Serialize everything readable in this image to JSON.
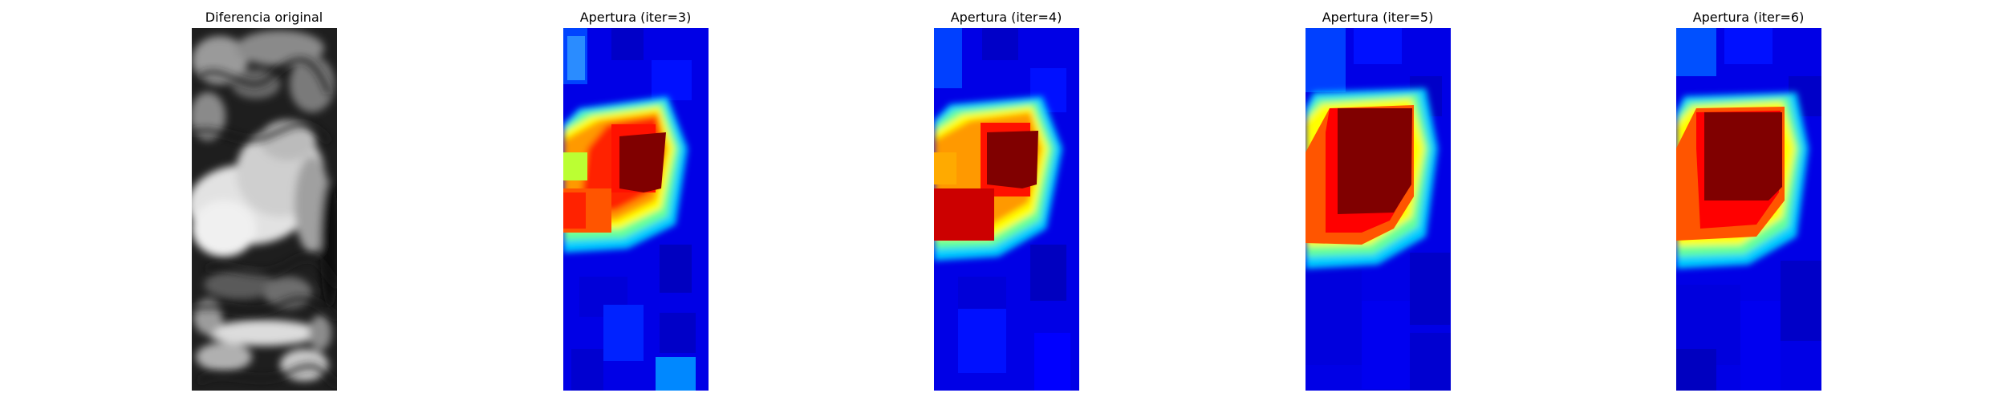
{
  "panels": [
    {
      "title": "Diferencia original",
      "colormap": "gray"
    },
    {
      "title": "Apertura (iter=3)",
      "colormap": "jet"
    },
    {
      "title": "Apertura (iter=4)",
      "colormap": "jet"
    },
    {
      "title": "Apertura (iter=5)",
      "colormap": "jet"
    },
    {
      "title": "Apertura (iter=6)",
      "colormap": "jet"
    }
  ],
  "colors": {
    "jet_dark_blue": "#00008f",
    "jet_blue": "#0000ff",
    "jet_cyan": "#00ffff",
    "jet_yellow": "#ffff00",
    "jet_orange": "#ff7f00",
    "jet_red": "#ff0000",
    "jet_dark_red": "#800000"
  }
}
